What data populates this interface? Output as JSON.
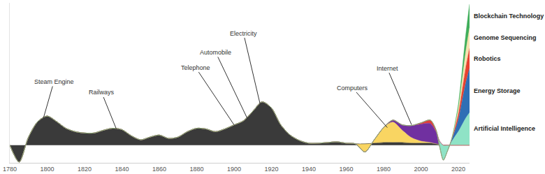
{
  "chart_data": {
    "type": "area",
    "stacked": true,
    "grid": false,
    "tick_labels": "x",
    "x": [
      1780,
      1785,
      1790,
      1795,
      1800,
      1805,
      1810,
      1815,
      1820,
      1825,
      1830,
      1835,
      1840,
      1845,
      1850,
      1855,
      1860,
      1865,
      1870,
      1875,
      1880,
      1885,
      1890,
      1895,
      1900,
      1905,
      1910,
      1915,
      1920,
      1925,
      1930,
      1935,
      1940,
      1945,
      1950,
      1955,
      1960,
      1965,
      1970,
      1975,
      1980,
      1985,
      1990,
      1995,
      2000,
      2005,
      2008,
      2010,
      2012,
      2014,
      2016,
      2018,
      2020,
      2022,
      2024,
      2026
    ],
    "xlim": [
      1780,
      2026
    ],
    "xticks": [
      1780,
      1800,
      1820,
      1840,
      1860,
      1880,
      1900,
      1920,
      1940,
      1960,
      1980,
      2000,
      2020
    ],
    "ylim": [
      -26,
      210
    ],
    "yticks": [],
    "series": [
      {
        "color": "#3a3a3a",
        "values": [
          0,
          -25,
          12,
          35,
          43,
          35,
          25,
          20,
          18,
          18,
          22,
          25,
          23,
          14,
          8,
          12,
          15,
          10,
          12,
          20,
          25,
          24,
          20,
          24,
          30,
          36,
          50,
          64,
          55,
          30,
          15,
          7,
          3,
          3,
          4,
          5,
          3,
          2,
          2,
          3,
          4,
          4,
          4,
          3,
          3,
          3,
          2,
          1,
          0,
          0,
          0,
          0,
          0,
          0,
          0,
          0
        ]
      },
      {
        "color": "#f9d562",
        "values": [
          0,
          0,
          0,
          0,
          0,
          0,
          0,
          0,
          0,
          0,
          0,
          0,
          0,
          0,
          0,
          0,
          0,
          0,
          0,
          0,
          0,
          0,
          0,
          0,
          0,
          0,
          0,
          0,
          0,
          0,
          0,
          0,
          0,
          0,
          0,
          0,
          0,
          0,
          -12,
          5,
          22,
          30,
          18,
          8,
          3,
          1,
          0,
          0,
          0,
          0,
          0,
          0,
          0,
          0,
          0,
          0
        ]
      },
      {
        "color": "#7030a0",
        "values": [
          0,
          0,
          0,
          0,
          0,
          0,
          0,
          0,
          0,
          0,
          0,
          0,
          0,
          0,
          0,
          0,
          0,
          0,
          0,
          0,
          0,
          0,
          0,
          0,
          0,
          0,
          0,
          0,
          0,
          0,
          0,
          0,
          0,
          0,
          0,
          0,
          0,
          0,
          0,
          0,
          0,
          3,
          8,
          18,
          25,
          28,
          18,
          5,
          0,
          0,
          0,
          0,
          0,
          0,
          0,
          0
        ]
      },
      {
        "color": "#e0403a",
        "values": [
          0,
          0,
          0,
          0,
          0,
          0,
          0,
          0,
          0,
          0,
          0,
          0,
          0,
          0,
          0,
          0,
          0,
          0,
          0,
          0,
          0,
          0,
          0,
          0,
          0,
          0,
          0,
          0,
          0,
          0,
          0,
          0,
          0,
          0,
          0,
          0,
          0,
          0,
          0,
          0,
          0,
          0,
          0,
          0,
          2,
          5,
          3,
          0,
          0,
          0,
          0,
          0,
          0,
          0,
          0,
          0
        ]
      },
      {
        "name": "Artificial Intelligence",
        "color": "#8fe3c6",
        "values": [
          0,
          0,
          0,
          0,
          0,
          0,
          0,
          0,
          0,
          0,
          0,
          0,
          0,
          0,
          0,
          0,
          0,
          0,
          0,
          0,
          0,
          0,
          0,
          0,
          0,
          0,
          0,
          0,
          0,
          0,
          0,
          0,
          0,
          0,
          0,
          0,
          0,
          0,
          0,
          0,
          0,
          0,
          0,
          0,
          0,
          0,
          0,
          -8,
          -22,
          -10,
          3,
          12,
          20,
          30,
          40,
          48
        ]
      },
      {
        "name": "Energy Storage",
        "color": "#2f6fb5",
        "values": [
          0,
          0,
          0,
          0,
          0,
          0,
          0,
          0,
          0,
          0,
          0,
          0,
          0,
          0,
          0,
          0,
          0,
          0,
          0,
          0,
          0,
          0,
          0,
          0,
          0,
          0,
          0,
          0,
          0,
          0,
          0,
          0,
          0,
          0,
          0,
          0,
          0,
          0,
          0,
          0,
          0,
          0,
          0,
          0,
          0,
          0,
          0,
          0,
          0,
          0,
          2,
          8,
          18,
          35,
          52,
          65
        ]
      },
      {
        "name": "Robotics",
        "color": "#e8412f",
        "values": [
          0,
          0,
          0,
          0,
          0,
          0,
          0,
          0,
          0,
          0,
          0,
          0,
          0,
          0,
          0,
          0,
          0,
          0,
          0,
          0,
          0,
          0,
          0,
          0,
          0,
          0,
          0,
          0,
          0,
          0,
          0,
          0,
          0,
          0,
          0,
          0,
          0,
          0,
          0,
          0,
          0,
          0,
          0,
          0,
          0,
          0,
          0,
          0,
          0,
          0,
          0,
          4,
          8,
          15,
          23,
          30
        ]
      },
      {
        "name": "Genome Sequencing",
        "color": "#f6e3b0",
        "values": [
          0,
          0,
          0,
          0,
          0,
          0,
          0,
          0,
          0,
          0,
          0,
          0,
          0,
          0,
          0,
          0,
          0,
          0,
          0,
          0,
          0,
          0,
          0,
          0,
          0,
          0,
          0,
          0,
          0,
          0,
          0,
          0,
          0,
          0,
          0,
          0,
          0,
          0,
          0,
          0,
          0,
          0,
          0,
          0,
          0,
          0,
          0,
          0,
          0,
          0,
          0,
          3,
          8,
          15,
          23,
          30
        ]
      },
      {
        "name": "Blockchain Technology",
        "color": "#3fae5a",
        "values": [
          0,
          0,
          0,
          0,
          0,
          0,
          0,
          0,
          0,
          0,
          0,
          0,
          0,
          0,
          0,
          0,
          0,
          0,
          0,
          0,
          0,
          0,
          0,
          0,
          0,
          0,
          0,
          0,
          0,
          0,
          0,
          0,
          0,
          0,
          0,
          0,
          0,
          0,
          0,
          0,
          0,
          0,
          0,
          0,
          0,
          0,
          0,
          0,
          0,
          0,
          0,
          2,
          6,
          14,
          25,
          35
        ]
      }
    ],
    "annotations": [
      {
        "text": "Steam Engine",
        "x": 1798,
        "y": 40
      },
      {
        "text": "Railways",
        "x": 1837,
        "y": 24
      },
      {
        "text": "Telephone",
        "x": 1900,
        "y": 30
      },
      {
        "text": "Automobile",
        "x": 1907,
        "y": 40
      },
      {
        "text": "Electricity",
        "x": 1914,
        "y": 60
      },
      {
        "text": "Computers",
        "x": 1982,
        "y": 26
      },
      {
        "text": "Internet",
        "x": 1995,
        "y": 30
      }
    ]
  }
}
